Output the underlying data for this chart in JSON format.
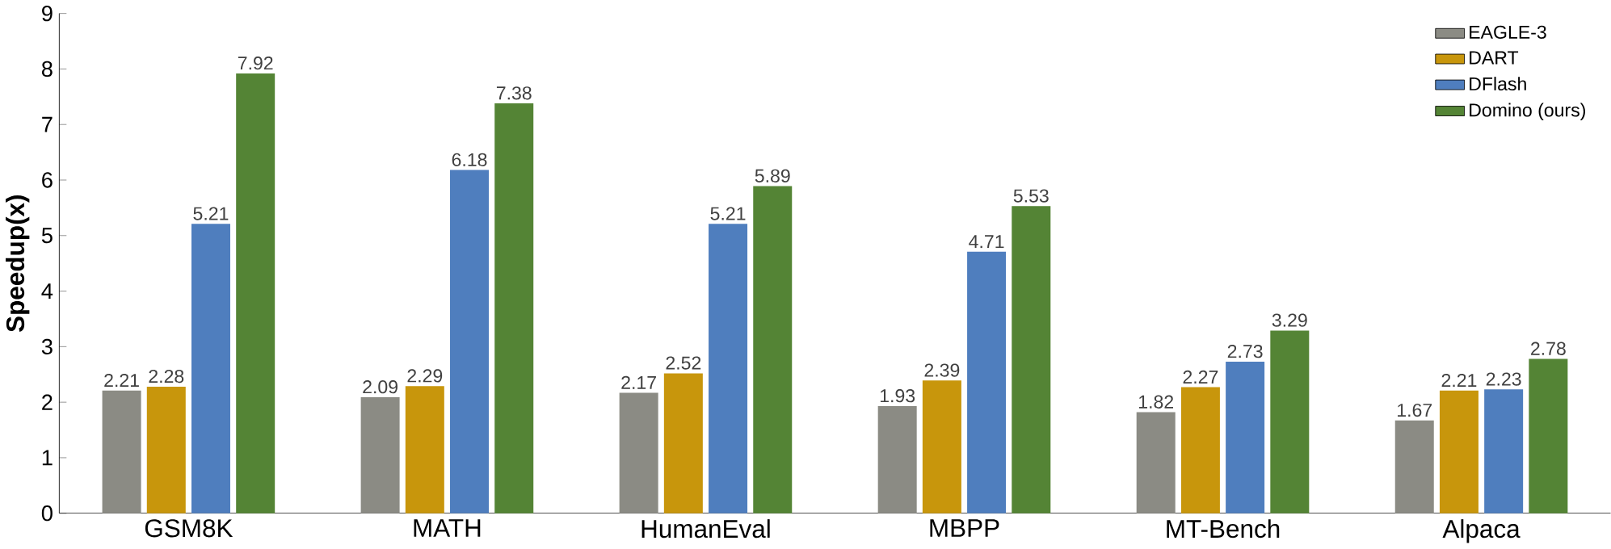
{
  "chart_data": {
    "type": "bar",
    "ylabel": "Speedup(x)",
    "categories": [
      "GSM8K",
      "MATH",
      "HumanEval",
      "MBPP",
      "MT-Bench",
      "Alpaca"
    ],
    "series": [
      {
        "name": "EAGLE-3",
        "color": "#8b8b84",
        "values": [
          2.21,
          2.09,
          2.17,
          1.93,
          1.82,
          1.67
        ]
      },
      {
        "name": "DART",
        "color": "#c8960c",
        "values": [
          2.28,
          2.29,
          2.52,
          2.39,
          2.27,
          2.21
        ]
      },
      {
        "name": "DFlash",
        "color": "#4f7ebe",
        "values": [
          5.21,
          6.18,
          5.21,
          4.71,
          2.73,
          2.23
        ]
      },
      {
        "name": "Domino (ours)",
        "color": "#548435",
        "values": [
          7.92,
          7.38,
          5.89,
          5.53,
          3.29,
          2.78
        ]
      }
    ],
    "ylim": [
      0,
      9
    ],
    "yticks": [
      0,
      1,
      2,
      3,
      4,
      5,
      6,
      7,
      8,
      9
    ],
    "data_labels": true,
    "legend": "top right",
    "grid": false
  }
}
